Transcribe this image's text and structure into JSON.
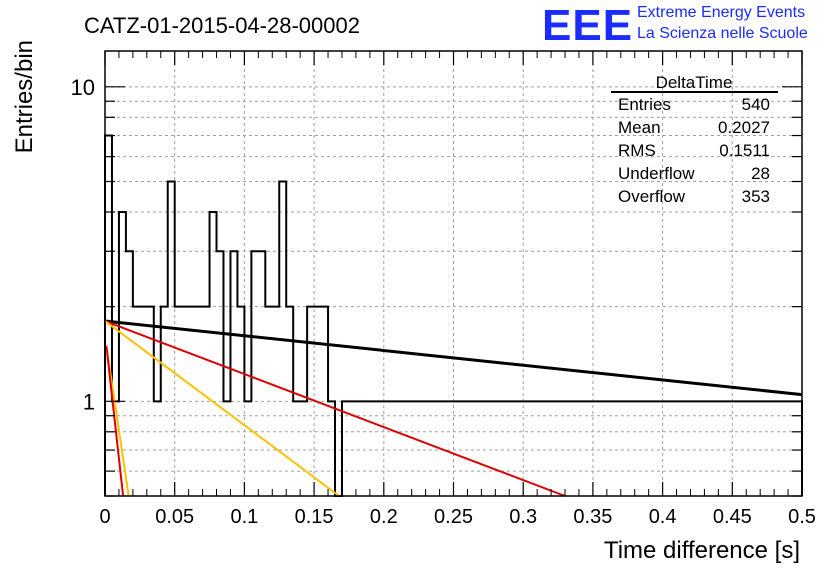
{
  "logo": {
    "mark": "EEE",
    "line1": "Extreme Energy Events",
    "line2": "La Scienza nelle Scuole",
    "color": "#1a2cff"
  },
  "chart_data": {
    "type": "histogram",
    "title": "CATZ-01-2015-04-28-00002",
    "xlabel": "Time difference [s]",
    "ylabel": "Entries/bin",
    "xlim": [
      0,
      0.5
    ],
    "ylim": [
      0.5,
      13
    ],
    "yscale": "log",
    "grid": true,
    "x_ticks": [
      "0",
      "0.05",
      "0.1",
      "0.15",
      "0.2",
      "0.25",
      "0.3",
      "0.35",
      "0.4",
      "0.45",
      "0.5"
    ],
    "y_ticks": [
      {
        "value": 1,
        "label": "1"
      },
      {
        "value": 10,
        "label": "10"
      }
    ],
    "bin_width": 0.005,
    "bins": [
      {
        "x": 0.0,
        "y": 7
      },
      {
        "x": 0.005,
        "y": 1
      },
      {
        "x": 0.01,
        "y": 4
      },
      {
        "x": 0.015,
        "y": 3
      },
      {
        "x": 0.02,
        "y": 2
      },
      {
        "x": 0.025,
        "y": 2
      },
      {
        "x": 0.03,
        "y": 2
      },
      {
        "x": 0.035,
        "y": 1
      },
      {
        "x": 0.04,
        "y": 2
      },
      {
        "x": 0.045,
        "y": 5
      },
      {
        "x": 0.05,
        "y": 2
      },
      {
        "x": 0.055,
        "y": 2
      },
      {
        "x": 0.06,
        "y": 2
      },
      {
        "x": 0.065,
        "y": 2
      },
      {
        "x": 0.07,
        "y": 2
      },
      {
        "x": 0.075,
        "y": 4
      },
      {
        "x": 0.08,
        "y": 3
      },
      {
        "x": 0.085,
        "y": 1
      },
      {
        "x": 0.09,
        "y": 3
      },
      {
        "x": 0.095,
        "y": 2
      },
      {
        "x": 0.1,
        "y": 1
      },
      {
        "x": 0.105,
        "y": 3
      },
      {
        "x": 0.11,
        "y": 3
      },
      {
        "x": 0.115,
        "y": 2
      },
      {
        "x": 0.12,
        "y": 2
      },
      {
        "x": 0.125,
        "y": 5
      },
      {
        "x": 0.13,
        "y": 2
      },
      {
        "x": 0.135,
        "y": 1
      },
      {
        "x": 0.14,
        "y": 1
      },
      {
        "x": 0.145,
        "y": 2
      },
      {
        "x": 0.15,
        "y": 2
      },
      {
        "x": 0.155,
        "y": 2
      },
      {
        "x": 0.16,
        "y": 1
      },
      {
        "x": 0.165,
        "y": 0.5
      },
      {
        "x": 0.17,
        "y": 1
      },
      {
        "x": 0.175,
        "y": 1
      },
      {
        "x": 0.18,
        "y": 1
      },
      {
        "x": 0.185,
        "y": 1
      },
      {
        "x": 0.19,
        "y": 1
      },
      {
        "x": 0.195,
        "y": 1
      },
      {
        "x": 0.2,
        "y": 1
      },
      {
        "x": 0.205,
        "y": 1
      },
      {
        "x": 0.21,
        "y": 1
      },
      {
        "x": 0.215,
        "y": 1
      },
      {
        "x": 0.22,
        "y": 1
      },
      {
        "x": 0.225,
        "y": 1
      },
      {
        "x": 0.23,
        "y": 1
      },
      {
        "x": 0.235,
        "y": 1
      },
      {
        "x": 0.24,
        "y": 1
      },
      {
        "x": 0.245,
        "y": 1
      },
      {
        "x": 0.25,
        "y": 1
      },
      {
        "x": 0.255,
        "y": 1
      },
      {
        "x": 0.26,
        "y": 1
      },
      {
        "x": 0.265,
        "y": 1
      },
      {
        "x": 0.27,
        "y": 1
      },
      {
        "x": 0.275,
        "y": 1
      },
      {
        "x": 0.28,
        "y": 1
      },
      {
        "x": 0.285,
        "y": 1
      },
      {
        "x": 0.29,
        "y": 1
      },
      {
        "x": 0.295,
        "y": 1
      },
      {
        "x": 0.3,
        "y": 1
      },
      {
        "x": 0.305,
        "y": 1
      },
      {
        "x": 0.31,
        "y": 1
      },
      {
        "x": 0.315,
        "y": 1
      },
      {
        "x": 0.32,
        "y": 1
      },
      {
        "x": 0.325,
        "y": 1
      },
      {
        "x": 0.33,
        "y": 1
      },
      {
        "x": 0.335,
        "y": 1
      },
      {
        "x": 0.34,
        "y": 1
      },
      {
        "x": 0.345,
        "y": 1
      },
      {
        "x": 0.35,
        "y": 1
      },
      {
        "x": 0.355,
        "y": 1
      },
      {
        "x": 0.36,
        "y": 1
      },
      {
        "x": 0.365,
        "y": 1
      },
      {
        "x": 0.37,
        "y": 1
      },
      {
        "x": 0.375,
        "y": 1
      },
      {
        "x": 0.38,
        "y": 1
      },
      {
        "x": 0.385,
        "y": 1
      },
      {
        "x": 0.39,
        "y": 1
      },
      {
        "x": 0.395,
        "y": 1
      },
      {
        "x": 0.4,
        "y": 1
      },
      {
        "x": 0.405,
        "y": 1
      },
      {
        "x": 0.41,
        "y": 1
      },
      {
        "x": 0.415,
        "y": 1
      },
      {
        "x": 0.42,
        "y": 1
      },
      {
        "x": 0.425,
        "y": 1
      },
      {
        "x": 0.43,
        "y": 1
      },
      {
        "x": 0.435,
        "y": 1
      },
      {
        "x": 0.44,
        "y": 1
      },
      {
        "x": 0.445,
        "y": 1
      },
      {
        "x": 0.45,
        "y": 1
      },
      {
        "x": 0.455,
        "y": 1
      },
      {
        "x": 0.46,
        "y": 1
      },
      {
        "x": 0.465,
        "y": 1
      },
      {
        "x": 0.47,
        "y": 1
      },
      {
        "x": 0.475,
        "y": 1
      },
      {
        "x": 0.48,
        "y": 1
      },
      {
        "x": 0.485,
        "y": 1
      },
      {
        "x": 0.49,
        "y": 1
      },
      {
        "x": 0.495,
        "y": 1
      }
    ],
    "fit_curves": [
      {
        "color": "#000000",
        "points": [
          [
            0,
            1.8
          ],
          [
            0.5,
            1.05
          ]
        ]
      },
      {
        "color": "#dd0000",
        "points": [
          [
            0,
            1.8
          ],
          [
            0.33,
            0.5
          ]
        ]
      },
      {
        "color": "#ffc000",
        "points": [
          [
            0,
            1.8
          ],
          [
            0.168,
            0.5
          ]
        ]
      },
      {
        "color": "#ffc000",
        "points": [
          [
            0.001,
            1.5
          ],
          [
            0.017,
            0.5
          ]
        ]
      },
      {
        "color": "#dd0000",
        "points": [
          [
            0.001,
            1.5
          ],
          [
            0.013,
            0.5
          ]
        ]
      }
    ],
    "stats": {
      "title": "DeltaTime",
      "rows": [
        {
          "label": "Entries",
          "value": "540"
        },
        {
          "label": "Mean",
          "value": "0.2027"
        },
        {
          "label": "RMS",
          "value": "0.1511"
        },
        {
          "label": "Underflow",
          "value": "28"
        },
        {
          "label": "Overflow",
          "value": "353"
        }
      ]
    }
  }
}
